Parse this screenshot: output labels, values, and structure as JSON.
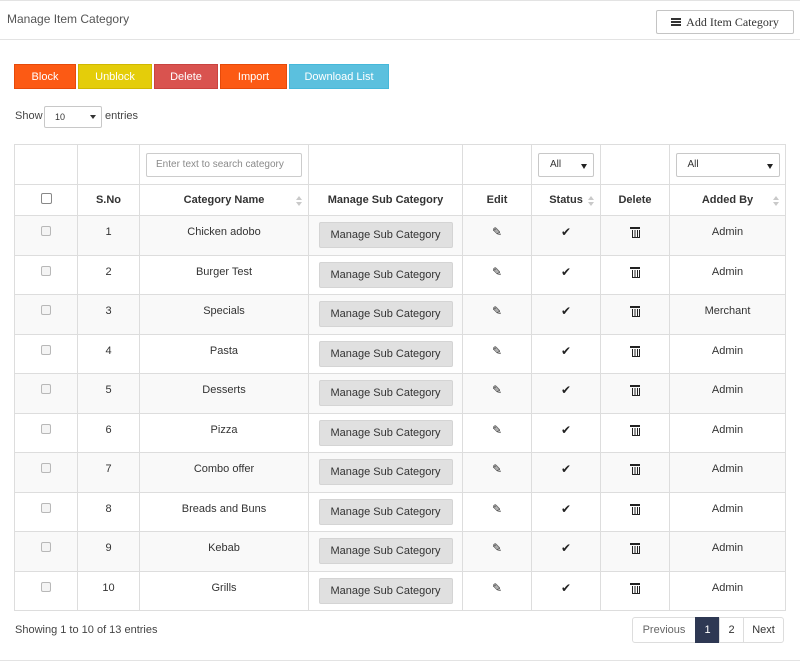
{
  "header": {
    "title": "Manage Item Category",
    "add_label": "Add Item Category"
  },
  "toolbar": {
    "block_label": "Block",
    "unblock_label": "Unblock",
    "delete_label": "Delete",
    "import_label": "Import",
    "download_label": "Download List"
  },
  "length": {
    "show_label": "Show",
    "value": "10",
    "entries_label": "entries"
  },
  "filters": {
    "search_placeholder": "Enter text to search category",
    "status_value": "All",
    "added_by_value": "All"
  },
  "columns": {
    "sno": "S.No",
    "name": "Category Name",
    "sub": "Manage Sub Category",
    "edit": "Edit",
    "status": "Status",
    "delete": "Delete",
    "added_by": "Added By"
  },
  "icons": {
    "edit": "pencil-icon",
    "status": "check-icon",
    "delete": "trash-icon"
  },
  "sub_button_label": "Manage Sub Category",
  "rows": [
    {
      "sno": "1",
      "name": "Chicken adobo",
      "added_by": "Admin"
    },
    {
      "sno": "2",
      "name": "Burger Test",
      "added_by": "Admin"
    },
    {
      "sno": "3",
      "name": "Specials",
      "added_by": "Merchant"
    },
    {
      "sno": "4",
      "name": "Pasta",
      "added_by": "Admin"
    },
    {
      "sno": "5",
      "name": "Desserts",
      "added_by": "Admin"
    },
    {
      "sno": "6",
      "name": "Pizza",
      "added_by": "Admin"
    },
    {
      "sno": "7",
      "name": "Combo offer",
      "added_by": "Admin"
    },
    {
      "sno": "8",
      "name": "Breads and Buns",
      "added_by": "Admin"
    },
    {
      "sno": "9",
      "name": "Kebab",
      "added_by": "Admin"
    },
    {
      "sno": "10",
      "name": "Grills",
      "added_by": "Admin"
    }
  ],
  "footer": {
    "info": "Showing 1 to 10 of 13 entries",
    "previous": "Previous",
    "page1": "1",
    "page2": "2",
    "next": "Next"
  },
  "colors": {
    "block": "#fc5a14",
    "unblock": "#e4cd0a",
    "delete": "#d9534f",
    "import": "#fc5a14",
    "download": "#5bc0de",
    "active_page": "#2e3853"
  }
}
